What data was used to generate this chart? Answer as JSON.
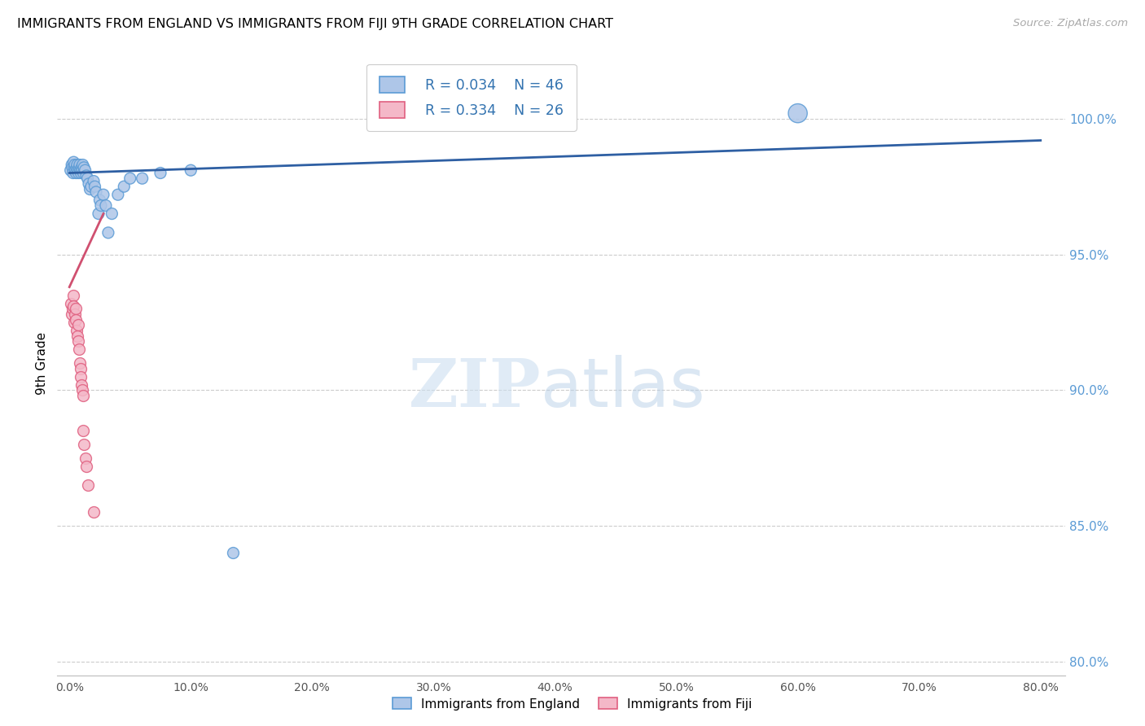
{
  "title": "IMMIGRANTS FROM ENGLAND VS IMMIGRANTS FROM FIJI 9TH GRADE CORRELATION CHART",
  "source": "Source: ZipAtlas.com",
  "ylabel_left": "9th Grade",
  "y_ticks": [
    80.0,
    85.0,
    90.0,
    95.0,
    100.0
  ],
  "x_ticks": [
    0.0,
    10.0,
    20.0,
    30.0,
    40.0,
    50.0,
    60.0,
    70.0,
    80.0
  ],
  "xlim": [
    -1.0,
    82.0
  ],
  "ylim": [
    79.5,
    102.5
  ],
  "england_color": "#aec6e8",
  "england_edge_color": "#5b9bd5",
  "fiji_color": "#f4b8c8",
  "fiji_edge_color": "#e06080",
  "trend_england_color": "#2e5fa3",
  "trend_fiji_color": "#d05070",
  "legend_r_england": "R = 0.034",
  "legend_n_england": "N = 46",
  "legend_r_fiji": "R = 0.334",
  "legend_n_fiji": "N = 26",
  "england_x": [
    0.1,
    0.2,
    0.25,
    0.3,
    0.35,
    0.4,
    0.45,
    0.5,
    0.55,
    0.6,
    0.65,
    0.7,
    0.75,
    0.8,
    0.85,
    0.9,
    0.95,
    1.0,
    1.05,
    1.1,
    1.15,
    1.2,
    1.3,
    1.4,
    1.5,
    1.6,
    1.7,
    1.8,
    2.0,
    2.1,
    2.2,
    2.4,
    2.5,
    2.6,
    2.8,
    3.0,
    3.2,
    3.5,
    4.0,
    4.5,
    5.0,
    6.0,
    7.5,
    10.0,
    13.5,
    60.0
  ],
  "england_y": [
    98.1,
    98.3,
    98.2,
    98.0,
    98.4,
    98.2,
    98.3,
    98.1,
    98.0,
    98.2,
    98.3,
    98.1,
    98.0,
    98.2,
    98.3,
    98.1,
    98.0,
    98.2,
    98.1,
    98.3,
    98.0,
    98.2,
    98.1,
    97.9,
    97.8,
    97.6,
    97.4,
    97.5,
    97.7,
    97.5,
    97.3,
    96.5,
    97.0,
    96.8,
    97.2,
    96.8,
    95.8,
    96.5,
    97.2,
    97.5,
    97.8,
    97.8,
    98.0,
    98.1,
    84.0,
    100.2
  ],
  "england_sizes": [
    100,
    100,
    100,
    100,
    100,
    100,
    100,
    100,
    100,
    100,
    100,
    100,
    100,
    100,
    100,
    100,
    100,
    100,
    100,
    100,
    100,
    100,
    100,
    100,
    100,
    100,
    100,
    100,
    100,
    100,
    100,
    100,
    100,
    100,
    100,
    100,
    100,
    100,
    100,
    100,
    100,
    100,
    100,
    100,
    100,
    280
  ],
  "fiji_x": [
    0.15,
    0.2,
    0.25,
    0.3,
    0.35,
    0.4,
    0.45,
    0.5,
    0.55,
    0.6,
    0.65,
    0.7,
    0.75,
    0.8,
    0.85,
    0.9,
    0.95,
    1.0,
    1.05,
    1.1,
    1.15,
    1.2,
    1.3,
    1.4,
    1.5,
    2.0
  ],
  "fiji_y": [
    93.2,
    92.8,
    93.0,
    93.5,
    93.1,
    92.5,
    92.8,
    93.0,
    92.6,
    92.2,
    92.0,
    92.4,
    91.8,
    91.5,
    91.0,
    90.8,
    90.5,
    90.2,
    90.0,
    89.8,
    88.5,
    88.0,
    87.5,
    87.2,
    86.5,
    85.5
  ],
  "eng_trend_x": [
    0.0,
    80.0
  ],
  "eng_trend_y": [
    98.0,
    99.2
  ],
  "fiji_trend_x": [
    0.0,
    2.8
  ],
  "fiji_trend_y": [
    93.8,
    96.5
  ]
}
